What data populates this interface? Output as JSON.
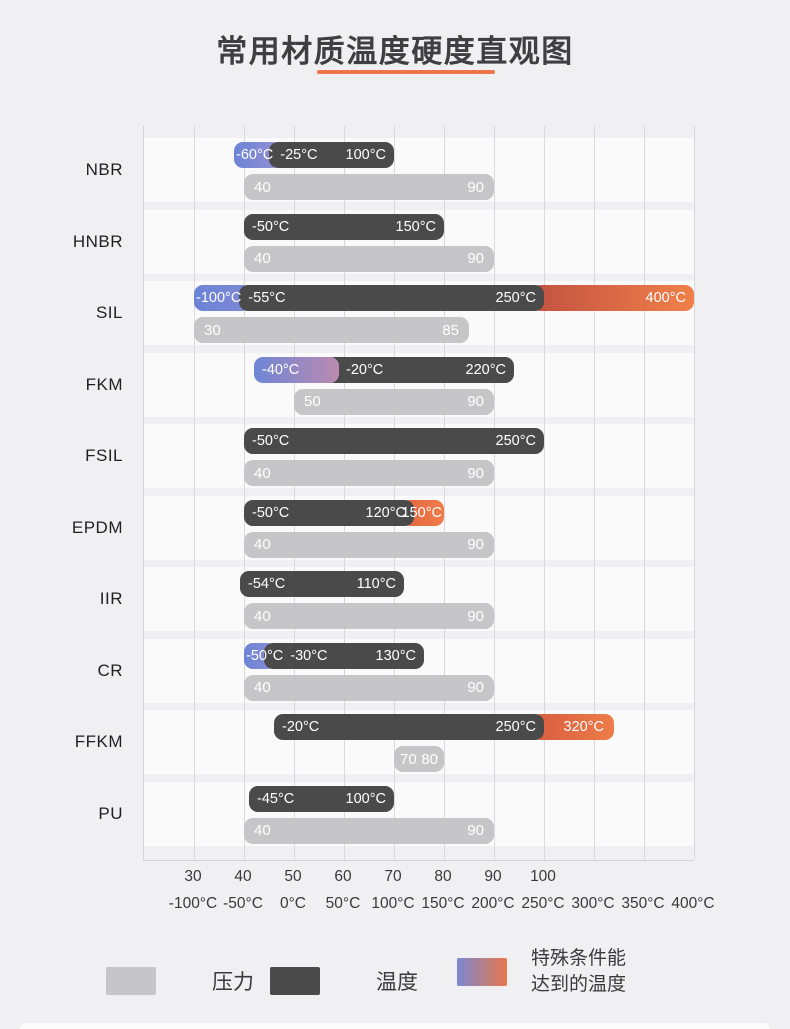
{
  "page": {
    "title": "常用材质温度硬度直观图",
    "accent_color": "#f2734a",
    "background_color": "#f0f0f2"
  },
  "chart_data": {
    "type": "bar",
    "orientation": "horizontal-range",
    "title": "常用材质温度硬度直观图",
    "grid": true,
    "axes": {
      "temperature": {
        "min": -100,
        "max": 400,
        "step": 50,
        "unit": "°C",
        "tick_labels": [
          "-100°C",
          "-50°C",
          "0°C",
          "50°C",
          "100°C",
          "150°C",
          "200°C",
          "250°C",
          "300°C",
          "350°C",
          "400°C"
        ]
      },
      "hardness": {
        "min": 30,
        "max": 100,
        "step": 10,
        "tick_labels": [
          "30",
          "40",
          "50",
          "60",
          "70",
          "80",
          "90",
          "100"
        ]
      }
    },
    "bar_colors": {
      "temperature": "#4a4a4b",
      "pressure": "#c6c6c8",
      "special_blue": "#6b84d6",
      "special_orange": "#f08049"
    },
    "materials": [
      {
        "name": "NBR",
        "temperature": {
          "from": -25,
          "to": 100,
          "from_label": "-25°C",
          "to_label": "100°C"
        },
        "hardness": {
          "from": 40,
          "to": 90,
          "from_label": "40",
          "to_label": "90"
        },
        "special": [
          {
            "side": "left",
            "label": "-60°C",
            "value": -60,
            "draw_from": -60,
            "draw_to": -13,
            "layer": "below",
            "colors": [
              "#6b84d6",
              "#958fd2"
            ],
            "pad": 2
          }
        ]
      },
      {
        "name": "HNBR",
        "temperature": {
          "from": -50,
          "to": 150,
          "from_label": "-50°C",
          "to_label": "150°C"
        },
        "hardness": {
          "from": 40,
          "to": 90,
          "from_label": "40",
          "to_label": "90"
        },
        "special": []
      },
      {
        "name": "SIL",
        "temperature": {
          "from": -55,
          "to": 250,
          "from_label": "-55°C",
          "to_label": "250°C"
        },
        "hardness": {
          "from": 30,
          "to": 85,
          "from_label": "30",
          "to_label": "85"
        },
        "special": [
          {
            "side": "left",
            "label": "-100°C",
            "value": -100,
            "draw_from": -100,
            "draw_to": -43,
            "layer": "below",
            "colors": [
              "#6b84d6",
              "#7e88d5"
            ],
            "pad": 2
          },
          {
            "side": "right",
            "label": "400°C",
            "value": 400,
            "draw_from": 238,
            "draw_to": 400,
            "layer": "below",
            "colors": [
              "#c25240",
              "#f08049"
            ],
            "pad": 8
          }
        ]
      },
      {
        "name": "FKM",
        "temperature": {
          "from": -20,
          "to": 220,
          "from_label": "-20°C",
          "to_label": "220°C"
        },
        "hardness": {
          "from": 50,
          "to": 90,
          "from_label": "50",
          "to_label": "90"
        },
        "special": [
          {
            "side": "left",
            "label": "-40°C",
            "value": -40,
            "draw_from": -40,
            "draw_to": 45,
            "layer": "above",
            "colors": [
              "#6e86d6",
              "#bb8ab0"
            ],
            "pad": 8
          }
        ]
      },
      {
        "name": "FSIL",
        "temperature": {
          "from": -50,
          "to": 250,
          "from_label": "-50°C",
          "to_label": "250°C"
        },
        "hardness": {
          "from": 40,
          "to": 90,
          "from_label": "40",
          "to_label": "90"
        },
        "special": []
      },
      {
        "name": "EPDM",
        "temperature": {
          "from": -50,
          "to": 120,
          "from_label": "-50°C",
          "to_label": "120°C"
        },
        "hardness": {
          "from": 40,
          "to": 90,
          "from_label": "40",
          "to_label": "90"
        },
        "special": [
          {
            "side": "right",
            "label": "150°C",
            "value": 150,
            "draw_from": 108,
            "draw_to": 150,
            "layer": "below",
            "colors": [
              "#e2663f",
              "#f07c4a"
            ],
            "pad": 2
          }
        ]
      },
      {
        "name": "IIR",
        "temperature": {
          "from": -54,
          "to": 110,
          "from_label": "-54°C",
          "to_label": "110°C"
        },
        "hardness": {
          "from": 40,
          "to": 90,
          "from_label": "40",
          "to_label": "90"
        },
        "special": []
      },
      {
        "name": "CR",
        "temperature": {
          "from": -30,
          "to": 130,
          "from_label": "-30°C",
          "to_label": "130°C"
        },
        "hardness": {
          "from": 40,
          "to": 90,
          "from_label": "40",
          "to_label": "90"
        },
        "special": [
          {
            "side": "left",
            "label": "-50°C",
            "value": -50,
            "draw_from": -50,
            "draw_to": -18,
            "layer": "below",
            "colors": [
              "#6b84d6",
              "#8d8cd3"
            ],
            "pad": 2
          }
        ]
      },
      {
        "name": "FFKM",
        "temperature": {
          "from": -20,
          "to": 250,
          "from_label": "-20°C",
          "to_label": "250°C"
        },
        "hardness": {
          "from": 70,
          "to": 80,
          "from_label": "70",
          "to_label": "80",
          "narrow": true
        },
        "special": [
          {
            "side": "right",
            "label": "320°C",
            "value": 320,
            "draw_from": 238,
            "draw_to": 320,
            "layer": "below",
            "colors": [
              "#d85c3e",
              "#ee7c49"
            ],
            "pad": 10
          }
        ]
      },
      {
        "name": "PU",
        "temperature": {
          "from": -45,
          "to": 100,
          "from_label": "-45°C",
          "to_label": "100°C"
        },
        "hardness": {
          "from": 40,
          "to": 90,
          "from_label": "40",
          "to_label": "90"
        },
        "special": []
      }
    ],
    "legend": [
      {
        "key": "pressure",
        "label": "压力",
        "color": "#c6c6c8"
      },
      {
        "key": "temperature",
        "label": "温度",
        "color": "#4a4a4b"
      },
      {
        "key": "special",
        "label": "特殊条件能达到的温度",
        "lines": [
          "特殊条件能",
          "达到的温度"
        ],
        "gradient": [
          "#7a89cf",
          "#e8764c"
        ]
      }
    ]
  }
}
